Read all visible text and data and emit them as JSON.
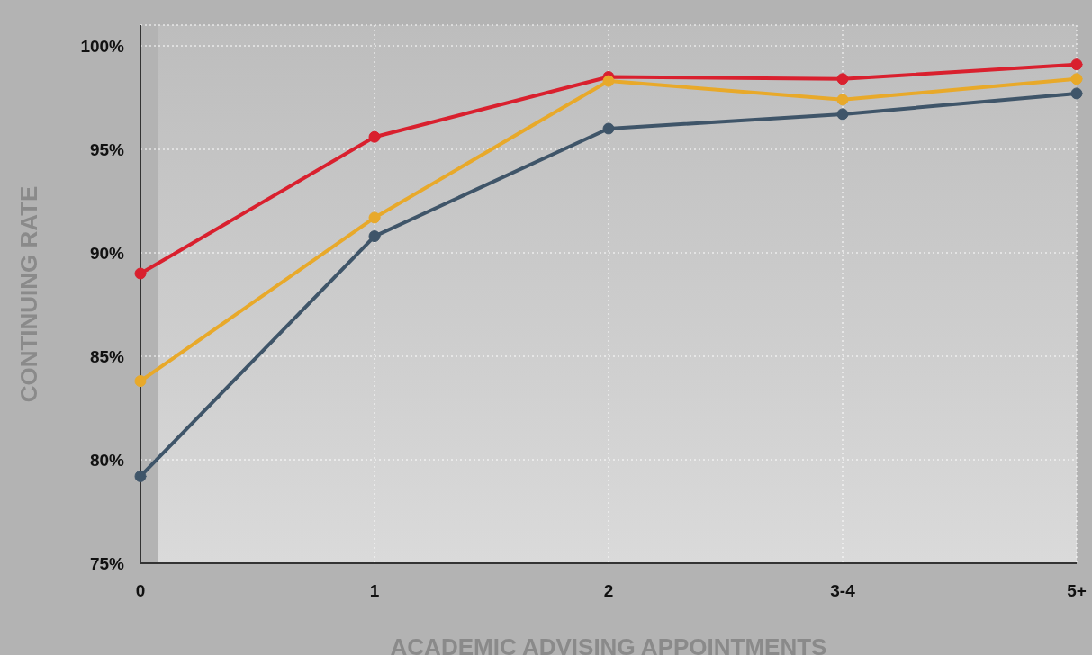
{
  "chart_data": {
    "type": "line",
    "xlabel": "ACADEMIC ADVISING APPOINTMENTS",
    "ylabel": "CONTINUING RATE",
    "categories": [
      "0",
      "1",
      "2",
      "3-4",
      "5+"
    ],
    "series": [
      {
        "color": "#d9202e",
        "values": [
          89.0,
          95.6,
          98.5,
          98.4,
          99.1
        ]
      },
      {
        "color": "#e8a92a",
        "values": [
          83.8,
          91.7,
          98.3,
          97.4,
          98.4
        ]
      },
      {
        "color": "#3f5569",
        "values": [
          79.2,
          90.8,
          96.0,
          96.7,
          97.7
        ]
      }
    ],
    "ylim": [
      75,
      101
    ],
    "yticks": [
      {
        "value": 75,
        "label": "75%"
      },
      {
        "value": 80,
        "label": "80%"
      },
      {
        "value": 85,
        "label": "85%"
      },
      {
        "value": 90,
        "label": "90%"
      },
      {
        "value": 95,
        "label": "95%"
      },
      {
        "value": 100,
        "label": "100%"
      }
    ],
    "grid": true,
    "marker": "circle",
    "legend": false
  }
}
